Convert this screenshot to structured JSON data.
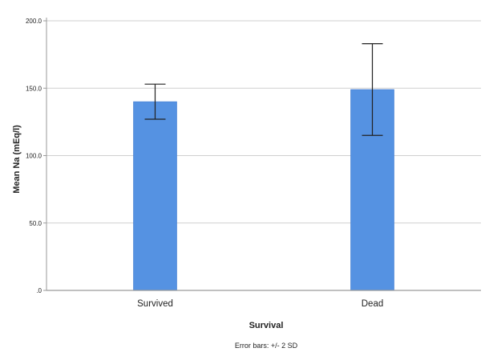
{
  "chart_data": {
    "type": "bar",
    "categories": [
      "Survived",
      "Dead"
    ],
    "values": [
      140,
      149
    ],
    "error_bars": {
      "low": [
        127,
        115
      ],
      "high": [
        153,
        183
      ]
    },
    "xlabel": "Survival",
    "ylabel": "Mean Na (mEq/l)",
    "ylim": [
      0,
      200
    ],
    "yticks": [
      0,
      50,
      100,
      150,
      200
    ],
    "ytick_labels": [
      ".0",
      "50.0",
      "100.0",
      "150.0",
      "200.0"
    ],
    "grid": true,
    "footnote": "Error bars: +/- 2 SD",
    "colors": {
      "bar": "#5592e2",
      "bar_edge": "#3f7bd0",
      "grid": "#cfcfcf",
      "axis": "#9a9a9a",
      "error_bar": "#222222"
    }
  }
}
